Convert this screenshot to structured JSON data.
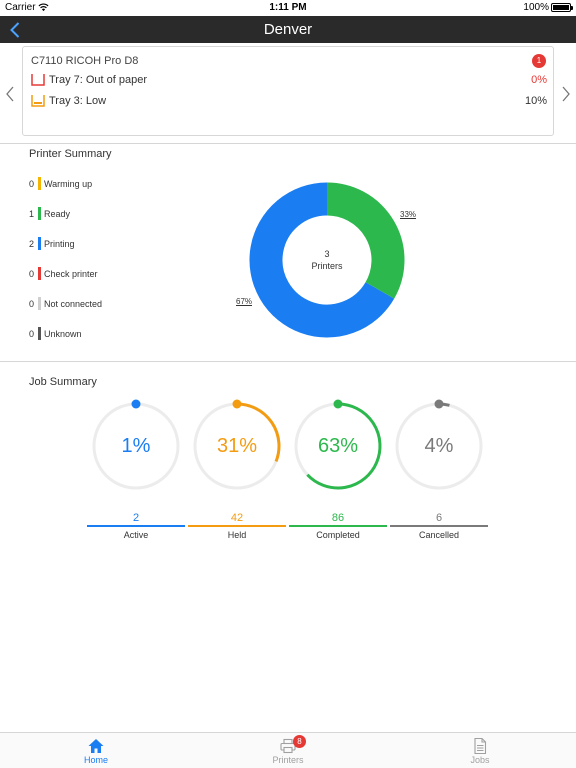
{
  "status_bar": {
    "carrier": "Carrier",
    "time": "1:11 PM",
    "battery": "100%"
  },
  "nav": {
    "title": "Denver"
  },
  "alert_card": {
    "printer_name": "C7110 RICOH Pro D8",
    "badge": "1",
    "trays": [
      {
        "label": "Tray 7: Out of paper",
        "percent": "0%",
        "color": "#e53935"
      },
      {
        "label": "Tray 3: Low",
        "percent": "10%",
        "color": "#f39c12"
      }
    ]
  },
  "printer_summary": {
    "title": "Printer Summary",
    "statuses": [
      {
        "count": "0",
        "label": "Warming up",
        "color": "#f5b400"
      },
      {
        "count": "1",
        "label": "Ready",
        "color": "#2db84d"
      },
      {
        "count": "2",
        "label": "Printing",
        "color": "#1a7df2"
      },
      {
        "count": "0",
        "label": "Check printer",
        "color": "#e53935"
      },
      {
        "count": "0",
        "label": "Not connected",
        "color": "#cfcfcf"
      },
      {
        "count": "0",
        "label": "Unknown",
        "color": "#555555"
      }
    ],
    "donut": {
      "center_count": "3",
      "center_label": "Printers",
      "ready_pct_label": "33%",
      "printing_pct_label": "67%",
      "segments": [
        {
          "name": "Ready",
          "fraction": 0.333,
          "color": "#2db84d"
        },
        {
          "name": "Printing",
          "fraction": 0.667,
          "color": "#1a7df2"
        }
      ]
    }
  },
  "job_summary": {
    "title": "Job Summary",
    "jobs": [
      {
        "name": "Active",
        "count": "2",
        "pct_label": "1%",
        "fraction": 0.01,
        "color": "#1a7df2"
      },
      {
        "name": "Held",
        "count": "42",
        "pct_label": "31%",
        "fraction": 0.31,
        "color": "#f39c12"
      },
      {
        "name": "Completed",
        "count": "86",
        "pct_label": "63%",
        "fraction": 0.63,
        "color": "#2db84d"
      },
      {
        "name": "Cancelled",
        "count": "6",
        "pct_label": "4%",
        "fraction": 0.04,
        "color": "#7a7a7a"
      }
    ]
  },
  "tab_bar": {
    "tabs": [
      {
        "label": "Home",
        "active": true,
        "color": "#1a7df2"
      },
      {
        "label": "Printers",
        "badge": "8",
        "color": "#a0a0a0"
      },
      {
        "label": "Jobs",
        "color": "#a0a0a0"
      }
    ]
  }
}
